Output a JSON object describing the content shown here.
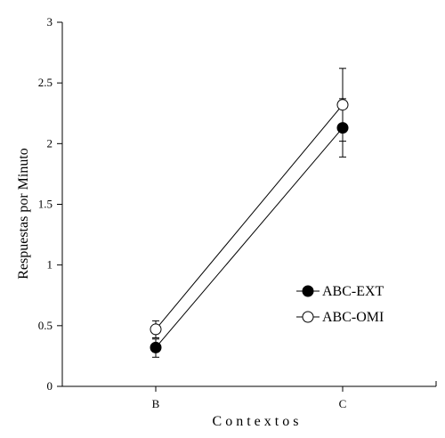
{
  "chart_data": {
    "type": "line",
    "title": "",
    "xlabel": "C o n t e x t o s",
    "ylabel": "Respuestas  por  Minuto",
    "categories": [
      "B",
      "C"
    ],
    "ylim": [
      0,
      3
    ],
    "yticks": [
      "0",
      "0.5",
      "1",
      "1.5",
      "2",
      "2.5",
      "3"
    ],
    "grid": false,
    "legend_position": "right",
    "series": [
      {
        "name": "ABC-EXT",
        "marker": "filled-circle",
        "values": [
          0.32,
          2.13
        ],
        "error_low": [
          0.24,
          1.89
        ],
        "error_high": [
          0.39,
          2.37
        ]
      },
      {
        "name": "ABC-OMI",
        "marker": "open-circle",
        "values": [
          0.47,
          2.32
        ],
        "error_low": [
          0.4,
          2.02
        ],
        "error_high": [
          0.54,
          2.62
        ]
      }
    ]
  }
}
